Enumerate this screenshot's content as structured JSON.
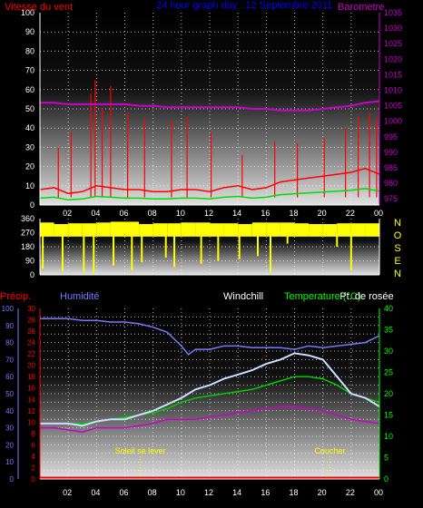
{
  "colors": {
    "wind": "#ff0000",
    "gust": "#ff0000",
    "avg_wind": "#00dd00",
    "barometer": "#cc00cc",
    "direction": "#ffff00",
    "humidity": "#7777ff",
    "windchill": "#ccddff",
    "temperature": "#00cc00",
    "dewpoint": "#cc00cc",
    "precip": "#ff0000",
    "title": "#0000ff",
    "temp_axis": "#00ff00",
    "dir_letters": "#ffff00",
    "sun": "#ffff00",
    "grid_dots": "#ffffff"
  },
  "chart_data": [
    {
      "type": "line",
      "title": "24 hour graph day : 12 Septembre 2011",
      "x_ticks": [
        "02",
        "04",
        "06",
        "08",
        "10",
        "12",
        "14",
        "16",
        "18",
        "20",
        "22",
        "00"
      ],
      "left_axis": {
        "label": "Vitesse du vent",
        "ticks": [
          "0",
          "10",
          "20",
          "30",
          "40",
          "50",
          "60",
          "70",
          "80",
          "90",
          "100"
        ],
        "range": [
          0,
          100
        ]
      },
      "right_axis": {
        "label": "Barometre",
        "ticks": [
          "975",
          "980",
          "985",
          "990",
          "995",
          "1000",
          "1005",
          "1010",
          "1015",
          "1020",
          "1025",
          "1030",
          "1035"
        ],
        "range": [
          973,
          1035
        ]
      },
      "series": [
        {
          "name": "Vitesse du vent",
          "units": "km/h",
          "x": [
            0,
            1,
            2,
            3,
            4,
            5,
            6,
            7,
            8,
            9,
            10,
            11,
            12,
            13,
            14,
            15,
            16,
            17,
            18,
            19,
            20,
            21,
            22,
            23,
            24
          ],
          "values": [
            8,
            9,
            6,
            7,
            10,
            9,
            8,
            8,
            7,
            7,
            8,
            8,
            7,
            9,
            10,
            8,
            9,
            12,
            13,
            14,
            15,
            16,
            17,
            19,
            16
          ]
        },
        {
          "name": "Barometre",
          "units": "hPa",
          "x": [
            0,
            1,
            2,
            3,
            4,
            5,
            6,
            7,
            8,
            9,
            10,
            11,
            12,
            13,
            14,
            15,
            16,
            17,
            18,
            19,
            20,
            21,
            22,
            23,
            24
          ],
          "values": [
            1006,
            1006,
            1005.5,
            1005.5,
            1005.5,
            1005.5,
            1005.5,
            1005,
            1005,
            1004.5,
            1004.5,
            1004.5,
            1004.5,
            1004.5,
            1004.5,
            1004,
            1004,
            1003.5,
            1003.5,
            1003.5,
            1004,
            1004.5,
            1005,
            1006,
            1006.5
          ]
        }
      ],
      "gust_spikes": [
        {
          "x": 1.3,
          "y": 30
        },
        {
          "x": 2.2,
          "y": 38
        },
        {
          "x": 3.6,
          "y": 58
        },
        {
          "x": 3.9,
          "y": 65
        },
        {
          "x": 4.4,
          "y": 50
        },
        {
          "x": 5.0,
          "y": 62
        },
        {
          "x": 6.2,
          "y": 48
        },
        {
          "x": 7.4,
          "y": 45
        },
        {
          "x": 9.3,
          "y": 44
        },
        {
          "x": 10.4,
          "y": 46
        },
        {
          "x": 12.1,
          "y": 38
        },
        {
          "x": 14.3,
          "y": 26
        },
        {
          "x": 16.6,
          "y": 33
        },
        {
          "x": 18.2,
          "y": 32
        },
        {
          "x": 20.1,
          "y": 35
        },
        {
          "x": 21.6,
          "y": 40
        },
        {
          "x": 22.5,
          "y": 46
        },
        {
          "x": 23.3,
          "y": 48
        },
        {
          "x": 23.8,
          "y": 45
        }
      ]
    },
    {
      "type": "bar",
      "title": "",
      "x_ticks": [
        "02",
        "04",
        "06",
        "08",
        "10",
        "12",
        "14",
        "16",
        "18",
        "20",
        "22",
        "00"
      ],
      "left_axis": {
        "label": "",
        "ticks": [
          "0",
          "90",
          "180",
          "270",
          "360"
        ],
        "range": [
          0,
          360
        ]
      },
      "right_axis": {
        "label": "",
        "ticks": [
          "N",
          "O",
          "S",
          "E",
          "N"
        ]
      },
      "series": [
        {
          "name": "Direction",
          "units": "deg",
          "x": [
            0,
            1,
            2,
            3,
            4,
            5,
            6,
            7,
            8,
            9,
            10,
            11,
            12,
            13,
            14,
            15,
            16,
            17,
            18,
            19,
            20,
            21,
            22,
            23,
            24
          ],
          "values": [
            310,
            300,
            290,
            305,
            300,
            310,
            315,
            300,
            295,
            305,
            300,
            310,
            300,
            305,
            300,
            300,
            310,
            310,
            305,
            300,
            300,
            300,
            305,
            300,
            305
          ]
        }
      ],
      "low_dips": [
        {
          "x": 0.2,
          "y": 40
        },
        {
          "x": 1.6,
          "y": 20
        },
        {
          "x": 3.1,
          "y": 15
        },
        {
          "x": 3.8,
          "y": 10
        },
        {
          "x": 5.2,
          "y": 60
        },
        {
          "x": 6.5,
          "y": 30
        },
        {
          "x": 7.2,
          "y": 80
        },
        {
          "x": 8.9,
          "y": 110
        },
        {
          "x": 9.5,
          "y": 50
        },
        {
          "x": 11.4,
          "y": 70
        },
        {
          "x": 12.6,
          "y": 90
        },
        {
          "x": 14.1,
          "y": 100
        },
        {
          "x": 15.4,
          "y": 120
        },
        {
          "x": 16.3,
          "y": 15
        },
        {
          "x": 17.5,
          "y": 200
        },
        {
          "x": 21.0,
          "y": 180
        },
        {
          "x": 22.0,
          "y": 30
        }
      ]
    },
    {
      "type": "line",
      "title": "",
      "x_ticks": [
        "02",
        "04",
        "06",
        "08",
        "10",
        "12",
        "14",
        "16",
        "18",
        "20",
        "22",
        "00"
      ],
      "axis_precip": {
        "label": "Précip.",
        "ticks": [
          "0",
          "2",
          "4",
          "6",
          "8",
          "10",
          "12",
          "14",
          "16",
          "18",
          "20",
          "22",
          "24",
          "26",
          "28",
          "30"
        ]
      },
      "axis_humidity": {
        "label": "Humidité",
        "ticks": [
          "0",
          "10",
          "20",
          "30",
          "40",
          "50",
          "60",
          "70",
          "80",
          "90",
          "100"
        ],
        "range": [
          0,
          100
        ]
      },
      "axis_temp": {
        "label": "Temperature (°C)",
        "ticks": [
          "0",
          "5",
          "10",
          "15",
          "20",
          "25",
          "30",
          "35",
          "40"
        ],
        "range": [
          0,
          40
        ]
      },
      "legend": {
        "windchill": "Windchill",
        "dewpoint": "Pt. de rosée"
      },
      "series": [
        {
          "name": "Humidité",
          "units": "%",
          "x": [
            0,
            1,
            2,
            3,
            4,
            5,
            6,
            7,
            8,
            9,
            10,
            10.5,
            11,
            12,
            13,
            14,
            15,
            16,
            17,
            18,
            19,
            20,
            21,
            22,
            23,
            24
          ],
          "values": [
            94,
            94,
            94,
            93,
            93,
            92,
            92,
            91,
            89,
            86,
            78,
            73,
            76,
            76,
            78,
            78,
            77,
            77,
            77,
            76,
            78,
            77,
            78,
            79,
            80,
            84
          ]
        },
        {
          "name": "Windchill",
          "units": "°C",
          "x": [
            0,
            1,
            2,
            3,
            4,
            5,
            6,
            7,
            8,
            9,
            10,
            10.5,
            11,
            12,
            13,
            14,
            15,
            16,
            17,
            18,
            19,
            20,
            21,
            22,
            23,
            24
          ],
          "values": [
            13,
            13,
            13,
            12.5,
            13.5,
            14,
            14,
            15,
            16,
            17.5,
            19,
            20,
            21,
            22,
            23.5,
            24.5,
            25.5,
            27,
            28,
            29.5,
            29,
            28,
            24,
            20,
            19,
            17
          ]
        },
        {
          "name": "Temperature",
          "units": "°C",
          "x": [
            0,
            1,
            2,
            3,
            4,
            5,
            6,
            7,
            8,
            9,
            10,
            10.5,
            11,
            12,
            13,
            14,
            15,
            16,
            17,
            18,
            19,
            20,
            21,
            22,
            23,
            24
          ],
          "values": [
            13,
            13,
            13,
            13,
            13.5,
            14,
            14.5,
            15,
            15.5,
            16.5,
            18,
            18.5,
            19,
            19.5,
            20,
            20.5,
            21,
            22,
            23,
            24,
            24,
            23.5,
            22,
            20,
            19,
            18
          ]
        },
        {
          "name": "Pt. de rosée",
          "units": "°C",
          "x": [
            0,
            1,
            2,
            3,
            4,
            5,
            6,
            7,
            8,
            9,
            10,
            10.5,
            11,
            12,
            13,
            14,
            15,
            16,
            17,
            18,
            19,
            20,
            21,
            22,
            23,
            24
          ],
          "values": [
            12,
            12,
            11.5,
            11,
            12,
            12,
            12,
            12.5,
            13,
            14,
            14,
            14,
            14,
            14.5,
            15,
            15.5,
            16,
            16.5,
            17,
            17,
            16.5,
            16,
            15,
            14,
            13.5,
            13
          ]
        },
        {
          "name": "Précip.",
          "units": "mm",
          "x": [
            0,
            24
          ],
          "values": [
            0,
            0
          ]
        }
      ],
      "annotations": [
        {
          "label": "Soleil se lever",
          "x": 7.1
        },
        {
          "label": "Coucher",
          "x": 20.5
        }
      ]
    }
  ]
}
